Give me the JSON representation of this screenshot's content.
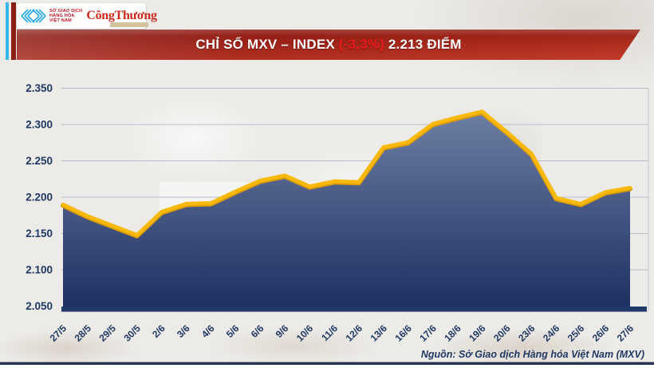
{
  "header": {
    "mxv_logo": {
      "line1": "SỞ GIAO DỊCH",
      "line2": "HÀNG HÓA",
      "line3": "VIỆT NAM",
      "mark_color": "#2aa9e0"
    },
    "congthuong_logo": {
      "text": "CôngThương",
      "color": "#cd2b21"
    }
  },
  "banner": {
    "title_prefix": "CHỈ SỐ MXV – INDEX ",
    "title_change": "(-3,3%)",
    "title_suffix": " 2.213 ĐIỂM",
    "change_color": "#ed1c1c"
  },
  "chart_data": {
    "type": "area",
    "title": "CHỈ SỐ MXV – INDEX (-3,3%) 2.213 ĐIỂM",
    "categories": [
      "27/5",
      "28/5",
      "29/5",
      "30/5",
      "2/6",
      "3/6",
      "4/6",
      "5/6",
      "6/6",
      "9/6",
      "10/6",
      "11/6",
      "12/6",
      "13/6",
      "16/6",
      "17/6",
      "18/6",
      "19/6",
      "20/6",
      "23/6",
      "24/6",
      "25/6",
      "26/6",
      "27/6"
    ],
    "values": [
      2190,
      2174,
      2161,
      2148,
      2180,
      2191,
      2192,
      2208,
      2223,
      2230,
      2215,
      2222,
      2221,
      2269,
      2276,
      2301,
      2310,
      2318,
      2290,
      2260,
      2199,
      2191,
      2207,
      2213
    ],
    "unit": "điểm",
    "ylim": [
      2050,
      2350
    ],
    "ytick_step": 50,
    "ytick_labels": [
      "2.050",
      "2.100",
      "2.150",
      "2.200",
      "2.250",
      "2.300",
      "2.350"
    ],
    "grid": true,
    "legend": false,
    "xlabel": "",
    "ylabel": "",
    "theme": {
      "line_color": "#f8b90b",
      "line_shadow_color": "#dd9d04",
      "area_top_color": "#6e7fa4",
      "area_bottom_color": "#1c2f60",
      "grid_color": "#b7bdc9",
      "axis_bar_color": "#213968",
      "tick_text_color": "#1f3864"
    }
  },
  "footer": {
    "source": "Nguồn: Sở Giao dịch Hàng hóa Việt Nam (MXV)"
  }
}
